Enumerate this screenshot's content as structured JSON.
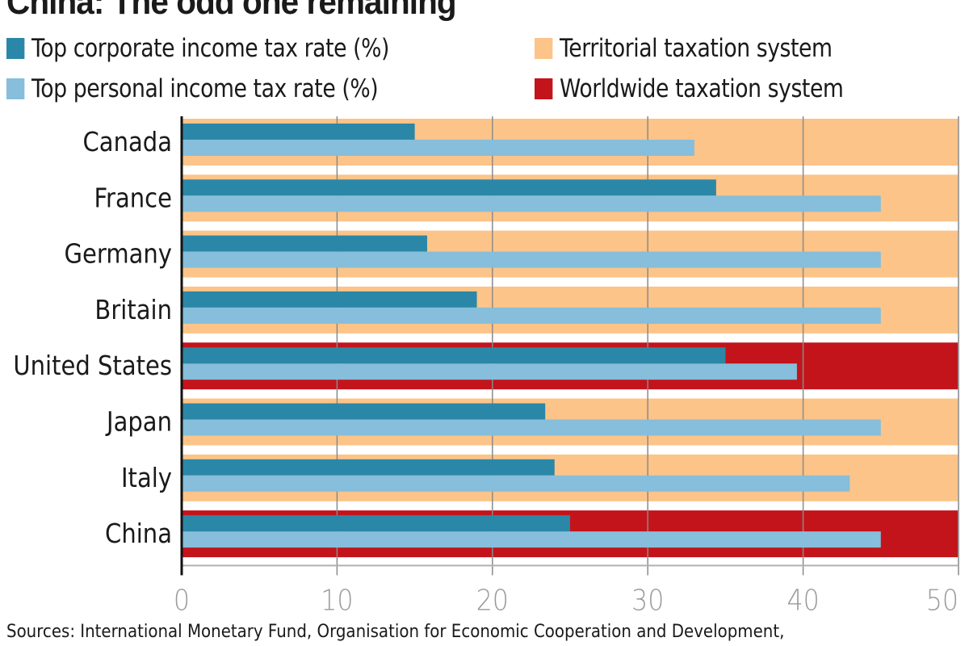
{
  "title": "China: The odd one remaining",
  "source": "Sources: International Monetary Fund, Organisation for Economic Cooperation and Development,",
  "colors": {
    "corporate": "#2b87a7",
    "personal": "#86bedb",
    "territorial": "#fcc488",
    "worldwide": "#c3141c",
    "grid": "#8a8a8a",
    "axis": "#111111",
    "tick_label": "#9a9a9a"
  },
  "legend": [
    {
      "label": "Top corporate income tax rate (%)",
      "color": "#2b87a7"
    },
    {
      "label": "Top personal income tax rate (%)",
      "color": "#86bedb"
    },
    {
      "label": "Territorial taxation system",
      "color": "#fcc488"
    },
    {
      "label": "Worldwide taxation system",
      "color": "#c3141c"
    }
  ],
  "chart_data": {
    "type": "bar",
    "orientation": "horizontal",
    "title": "China: The odd one remaining",
    "xlabel": "",
    "ylabel": "",
    "xlim": [
      0,
      50
    ],
    "xticks": [
      0,
      10,
      20,
      30,
      40,
      50
    ],
    "grid": true,
    "legend_position": "top",
    "categories": [
      "Canada",
      "France",
      "Germany",
      "Britain",
      "United States",
      "Japan",
      "Italy",
      "China"
    ],
    "series": [
      {
        "name": "Top corporate income tax rate (%)",
        "values": [
          15.0,
          34.4,
          15.8,
          19.0,
          35.0,
          23.4,
          24.0,
          25.0
        ]
      },
      {
        "name": "Top personal income tax rate (%)",
        "values": [
          33.0,
          45.0,
          45.0,
          45.0,
          39.6,
          45.0,
          43.0,
          45.0
        ]
      }
    ],
    "taxation_system": [
      "Territorial",
      "Territorial",
      "Territorial",
      "Territorial",
      "Worldwide",
      "Territorial",
      "Territorial",
      "Worldwide"
    ],
    "taxation_system_labels": {
      "Territorial": "Territorial taxation system",
      "Worldwide": "Worldwide taxation system"
    }
  }
}
